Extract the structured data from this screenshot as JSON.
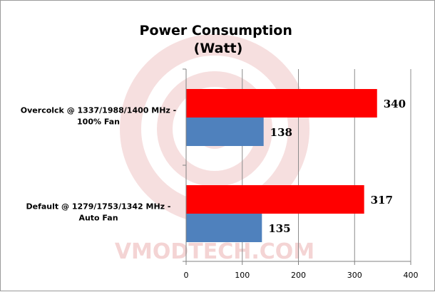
{
  "chart_data": {
    "type": "bar",
    "orientation": "horizontal",
    "title": [
      "Power Consumption",
      "(Watt)"
    ],
    "categories": [
      [
        "Overcolck @ 1337/1988/1400 MHz -",
        "100% Fan"
      ],
      [
        "Default @ 1279/1753/1342 MHz -",
        "Auto Fan"
      ]
    ],
    "series": [
      {
        "values": [
          340,
          317
        ],
        "color": "#ff0000"
      },
      {
        "values": [
          138,
          135
        ],
        "color": "#4f81bd"
      }
    ],
    "xlim": [
      0,
      400
    ],
    "xticks": [
      0,
      100,
      200,
      300,
      400
    ],
    "grid": true,
    "legend": "none"
  },
  "watermark": "VMODTECH.COM"
}
